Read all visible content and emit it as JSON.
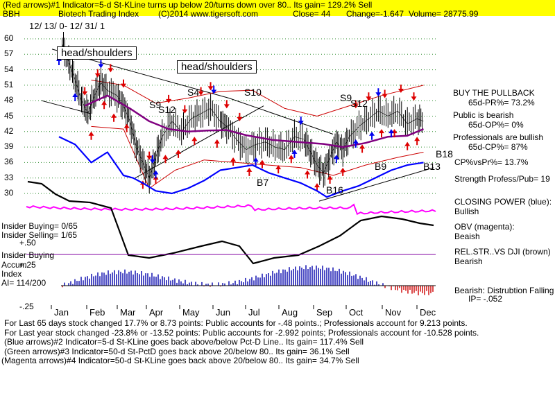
{
  "header": {
    "line1": "(Red arrows)#1 Indicator=5-d St-KLine turns up below 20/turns down over 80.. Its gain= 129.2% Sell",
    "ticker": "BBH",
    "name": "Biotech Trading Index",
    "copyright": "(C)2014 www.tigersoft.com",
    "close": "Close=  44",
    "change": "Change=-1.647",
    "volume": "Volume= 28775.99",
    "date_range": "12/ 13/ 0- 12/ 31/ 1"
  },
  "callouts": {
    "hs1": "head/shoulders",
    "hs2": "head/shoulders"
  },
  "chart_labels": [
    "S9",
    "S12",
    "S4",
    "S10",
    "S9",
    "S12",
    "B7",
    "B9",
    "B13",
    "B16",
    "B18"
  ],
  "left_labels": {
    "insider_buying": "Insider Buying= 0/65",
    "insider_selling": "Insider Selling= 1/65",
    "p50": "+.50",
    "insider_buying2": "Insider Buying",
    "accum": "Accum",
    "p25": "+.25",
    "index": "Index",
    "ai": "AI= 114/200",
    "m25": "-.25"
  },
  "right_panel": {
    "buy": "BUY THE PULLBACK",
    "pr": "65d-PR%= 73.2%",
    "public": "Public is bearish",
    "op": "65d-OP%= 0%",
    "pros": "Professionals are bullish",
    "cp": "65d-CP%= 87%",
    "cpvspr": "CP%vsPr%=  13.7%",
    "strength": "Strength Profess/Pub= 19",
    "closing_power": "CLOSING POWER (blue):",
    "cp_status": "Bullish",
    "obv": "OBV (magenta):",
    "obv_status": "Beaish",
    "relstr": "REL.STR..VS DJI (brown)",
    "relstr_status": "Bearish",
    "distribution": "Bearish: Distrubtion Falling",
    "ip": "IP= -.052"
  },
  "footer": {
    "line1": "For Last 65 days stock changed  17.7% or  8.73 points:  Public accounts for -.48 points.;  Professionals account for  9.213 points.",
    "line2": "For Last year stock changed  -23.8% or -13.52 points:  Public accounts for -2.992 points;  Professionals account for -10.528 points.",
    "line3": "(Blue arrows)#2 Indicator=5-d St-KLine goes back above/below Pct-D Line.. Its gain= 117.4% Sell",
    "line4": "(Green arrows)#3 Indicator=50-d St-PctD goes back above 20/below 80.. Its gain= 36.1% Sell",
    "line5": "(Magenta arrows)#4 Indicator=50-d St-KLine goes back above 20/below 80.. Its gain= 34.7% Sell"
  },
  "chart_data": {
    "type": "line",
    "title": "Biotech Trading Index",
    "x_tick_labels": [
      "Jan",
      "Feb",
      "Mar",
      "Apr",
      "May",
      "Jun",
      "Jul",
      "Aug",
      "Sep",
      "Oct",
      "Nov",
      "Dec"
    ],
    "y_tick_labels": [
      "60",
      "57",
      "54",
      "51",
      "48",
      "45",
      "42",
      "39",
      "36",
      "33",
      "30"
    ],
    "ylim": [
      28.5,
      61
    ],
    "colors": {
      "price_up": "#000000",
      "bands": "#cc0000",
      "ma": "#800080",
      "closing_power": "#0000ff",
      "obv": "#ff00ff",
      "relstr": "#000000",
      "accum_pos": "#0000aa",
      "accum_neg": "#cc0000"
    },
    "price": [
      {
        "m": 0.1,
        "v": 59.0
      },
      {
        "m": 0.3,
        "v": 55.5
      },
      {
        "m": 0.5,
        "v": 52.0
      },
      {
        "m": 0.7,
        "v": 48.0
      },
      {
        "m": 0.9,
        "v": 45.5
      },
      {
        "m": 1.1,
        "v": 49.0
      },
      {
        "m": 1.3,
        "v": 51.5
      },
      {
        "m": 1.5,
        "v": 50.0
      },
      {
        "m": 1.8,
        "v": 49.0
      },
      {
        "m": 2.0,
        "v": 47.0
      },
      {
        "m": 2.2,
        "v": 44.0
      },
      {
        "m": 2.4,
        "v": 39.0
      },
      {
        "m": 2.6,
        "v": 36.0
      },
      {
        "m": 2.8,
        "v": 33.0
      },
      {
        "m": 3.0,
        "v": 37.0
      },
      {
        "m": 3.2,
        "v": 41.0
      },
      {
        "m": 3.5,
        "v": 44.0
      },
      {
        "m": 3.8,
        "v": 42.0
      },
      {
        "m": 4.1,
        "v": 44.5
      },
      {
        "m": 4.4,
        "v": 45.5
      },
      {
        "m": 4.7,
        "v": 46.5
      },
      {
        "m": 5.0,
        "v": 44.0
      },
      {
        "m": 5.2,
        "v": 43.0
      },
      {
        "m": 5.5,
        "v": 40.5
      },
      {
        "m": 5.8,
        "v": 38.5
      },
      {
        "m": 6.1,
        "v": 39.5
      },
      {
        "m": 6.4,
        "v": 40.0
      },
      {
        "m": 6.7,
        "v": 39.0
      },
      {
        "m": 7.0,
        "v": 38.5
      },
      {
        "m": 7.3,
        "v": 41.0
      },
      {
        "m": 7.6,
        "v": 40.5
      },
      {
        "m": 7.8,
        "v": 38.0
      },
      {
        "m": 8.0,
        "v": 35.5
      },
      {
        "m": 8.2,
        "v": 34.0
      },
      {
        "m": 8.4,
        "v": 37.0
      },
      {
        "m": 8.6,
        "v": 40.0
      },
      {
        "m": 8.8,
        "v": 38.5
      },
      {
        "m": 9.0,
        "v": 41.0
      },
      {
        "m": 9.3,
        "v": 43.0
      },
      {
        "m": 9.6,
        "v": 44.5
      },
      {
        "m": 9.9,
        "v": 46.0
      },
      {
        "m": 10.2,
        "v": 45.0
      },
      {
        "m": 10.5,
        "v": 46.0
      },
      {
        "m": 10.8,
        "v": 43.5
      },
      {
        "m": 11.1,
        "v": 44.5
      },
      {
        "m": 11.3,
        "v": 44.0
      }
    ],
    "ma": [
      {
        "m": 0.8,
        "v": 47.0
      },
      {
        "m": 1.5,
        "v": 49.0
      },
      {
        "m": 2.2,
        "v": 46.5
      },
      {
        "m": 2.8,
        "v": 44.0
      },
      {
        "m": 3.4,
        "v": 42.5
      },
      {
        "m": 4.0,
        "v": 42.0
      },
      {
        "m": 4.6,
        "v": 42.2
      },
      {
        "m": 5.2,
        "v": 42.3
      },
      {
        "m": 5.8,
        "v": 41.3
      },
      {
        "m": 6.6,
        "v": 40.4
      },
      {
        "m": 7.4,
        "v": 40.0
      },
      {
        "m": 8.2,
        "v": 39.6
      },
      {
        "m": 8.8,
        "v": 39.0
      },
      {
        "m": 9.5,
        "v": 39.8
      },
      {
        "m": 10.2,
        "v": 41.0
      },
      {
        "m": 10.8,
        "v": 41.2
      },
      {
        "m": 11.3,
        "v": 42.5
      }
    ],
    "band_upper": [
      {
        "m": 1.0,
        "v": 52.0
      },
      {
        "m": 2.0,
        "v": 51.0
      },
      {
        "m": 3.0,
        "v": 47.5
      },
      {
        "m": 4.0,
        "v": 48.5
      },
      {
        "m": 5.0,
        "v": 49.8
      },
      {
        "m": 6.0,
        "v": 50.0
      },
      {
        "m": 7.0,
        "v": 46.5
      },
      {
        "m": 8.0,
        "v": 45.0
      },
      {
        "m": 9.0,
        "v": 47.0
      },
      {
        "m": 10.0,
        "v": 49.0
      },
      {
        "m": 11.3,
        "v": 51.0
      }
    ],
    "band_lower": [
      {
        "m": 1.0,
        "v": 43.0
      },
      {
        "m": 2.0,
        "v": 42.5
      },
      {
        "m": 2.8,
        "v": 31.0
      },
      {
        "m": 3.6,
        "v": 34.5
      },
      {
        "m": 4.5,
        "v": 36.5
      },
      {
        "m": 5.5,
        "v": 36.0
      },
      {
        "m": 6.5,
        "v": 35.5
      },
      {
        "m": 7.5,
        "v": 35.0
      },
      {
        "m": 8.5,
        "v": 33.5
      },
      {
        "m": 9.5,
        "v": 35.5
      },
      {
        "m": 10.5,
        "v": 37.0
      },
      {
        "m": 11.3,
        "v": 38.0
      }
    ],
    "closing_power": [
      {
        "m": 0.0,
        "v": 41.0
      },
      {
        "m": 0.5,
        "v": 39.5
      },
      {
        "m": 1.0,
        "v": 36.0
      },
      {
        "m": 1.5,
        "v": 38.0
      },
      {
        "m": 2.0,
        "v": 33.5
      },
      {
        "m": 2.3,
        "v": 33.0
      },
      {
        "m": 2.6,
        "v": 32.0
      },
      {
        "m": 3.0,
        "v": 30.5
      },
      {
        "m": 3.5,
        "v": 30.0
      },
      {
        "m": 4.0,
        "v": 31.0
      },
      {
        "m": 4.5,
        "v": 32.5
      },
      {
        "m": 5.0,
        "v": 34.5
      },
      {
        "m": 5.5,
        "v": 35.0
      },
      {
        "m": 6.0,
        "v": 35.5
      },
      {
        "m": 6.5,
        "v": 34.0
      },
      {
        "m": 7.0,
        "v": 33.0
      },
      {
        "m": 7.5,
        "v": 32.0
      },
      {
        "m": 8.0,
        "v": 30.5
      },
      {
        "m": 8.3,
        "v": 29.3
      },
      {
        "m": 8.8,
        "v": 30.5
      },
      {
        "m": 9.3,
        "v": 31.5
      },
      {
        "m": 9.8,
        "v": 33.0
      },
      {
        "m": 10.3,
        "v": 34.5
      },
      {
        "m": 10.8,
        "v": 35.5
      },
      {
        "m": 11.3,
        "v": 36.0
      }
    ]
  }
}
